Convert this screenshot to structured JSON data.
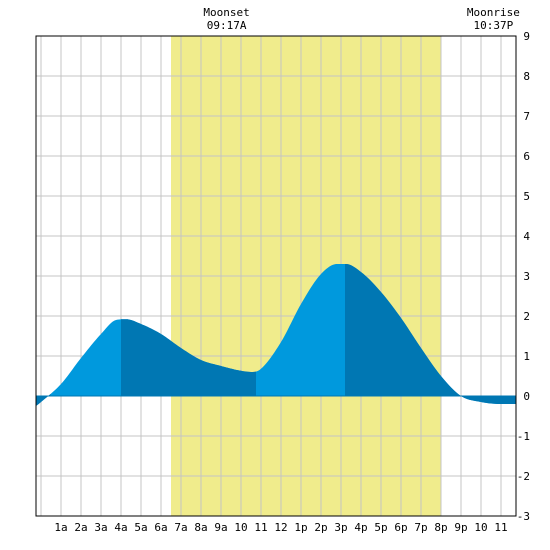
{
  "chart_data": {
    "type": "area",
    "ylim": [
      -3,
      9
    ],
    "y_ticks": [
      9,
      8,
      7,
      6,
      5,
      4,
      3,
      2,
      1,
      0,
      -1,
      -2,
      -3
    ],
    "x_range_hours": [
      -0.25,
      23.75
    ],
    "x_tick_labels": [
      "1a",
      "2a",
      "3a",
      "4a",
      "5a",
      "6a",
      "7a",
      "8a",
      "9a",
      "10",
      "11",
      "12",
      "1p",
      "2p",
      "3p",
      "4p",
      "5p",
      "6p",
      "7p",
      "8p",
      "9p",
      "10",
      "11"
    ],
    "grid": true,
    "daylight": {
      "start_hour": 6.5,
      "end_hour": 20.0
    },
    "annotations": [
      {
        "title": "Moonset",
        "time": "09:17A",
        "hour": 9.28
      },
      {
        "title": "Moonrise",
        "time": "10:37P",
        "hour": 22.62
      }
    ],
    "tide_curve": {
      "x_hours": [
        -0.25,
        0,
        1,
        2,
        3,
        3.75,
        4.25,
        5,
        6,
        7,
        8,
        9,
        10,
        10.6,
        11,
        12,
        13,
        14,
        14.8,
        15.25,
        16,
        17,
        18,
        19,
        20,
        21,
        22,
        23,
        23.75
      ],
      "y_values": [
        -0.25,
        -0.15,
        0.3,
        0.95,
        1.55,
        1.9,
        1.92,
        1.8,
        1.55,
        1.2,
        0.9,
        0.75,
        0.63,
        0.6,
        0.68,
        1.35,
        2.3,
        3.05,
        3.3,
        3.3,
        3.1,
        2.6,
        1.95,
        1.2,
        0.5,
        0.0,
        -0.15,
        -0.2,
        -0.2
      ]
    },
    "darker_segments_hours": [
      [
        -0.25,
        0.48
      ],
      [
        4.0,
        10.75
      ],
      [
        15.2,
        23.75
      ]
    ],
    "colors": {
      "daylight_band": "#f0ec8c",
      "tide_fill": "#0099dd",
      "tide_fill_dark": "#0077b3",
      "grid_line": "#c4c4c4",
      "border": "#000000"
    }
  }
}
